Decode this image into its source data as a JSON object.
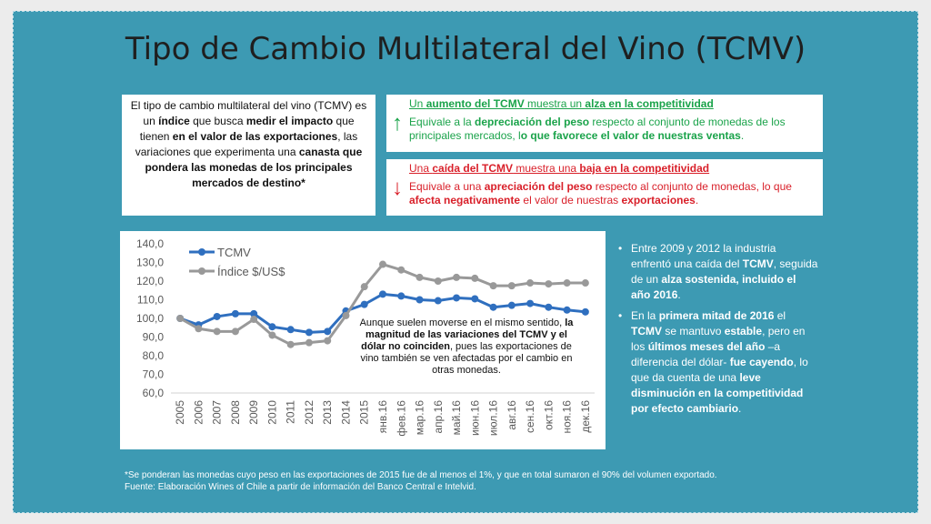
{
  "title": "Tipo de Cambio Multilateral del Vino (TCMV)",
  "intro": {
    "parts": [
      {
        "t": "El tipo de cambio multilateral del vino (TCMV) es un ",
        "b": false
      },
      {
        "t": "índice",
        "b": true
      },
      {
        "t": " que busca ",
        "b": false
      },
      {
        "t": "medir el impacto",
        "b": true
      },
      {
        "t": " que tienen ",
        "b": false
      },
      {
        "t": "en el valor de las exportaciones",
        "b": true
      },
      {
        "t": ", las variaciones que experimenta una ",
        "b": false
      },
      {
        "t": "canasta que pondera las monedas de los principales mercados de destino*",
        "b": true
      }
    ]
  },
  "up_box": {
    "head_parts": [
      {
        "t": "Un ",
        "b": false
      },
      {
        "t": "aumento del TCMV",
        "b": true
      },
      {
        "t": " muestra un ",
        "b": false
      },
      {
        "t": "alza en la competitividad",
        "b": true
      }
    ],
    "body_parts": [
      {
        "t": "Equivale a la ",
        "b": false
      },
      {
        "t": "depreciación del peso",
        "b": true
      },
      {
        "t": " respecto al conjunto de monedas de los principales mercados, l",
        "b": false
      },
      {
        "t": "o que favorece el valor de nuestras ventas",
        "b": true
      },
      {
        "t": ".",
        "b": false
      }
    ],
    "color": "#1aa34a",
    "arrow": "↑"
  },
  "down_box": {
    "head_parts": [
      {
        "t": "Una ",
        "b": false
      },
      {
        "t": "caída del TCMV",
        "b": true
      },
      {
        "t": " muestra una ",
        "b": false
      },
      {
        "t": "baja en la competitividad",
        "b": true
      }
    ],
    "body_parts": [
      {
        "t": "Equivale a una ",
        "b": false
      },
      {
        "t": "apreciación del peso",
        "b": true
      },
      {
        "t": " respecto al conjunto de monedas, lo que ",
        "b": false
      },
      {
        "t": "afecta negativamente",
        "b": true
      },
      {
        "t": " el valor de nuestras ",
        "b": false
      },
      {
        "t": "exportaciones",
        "b": true
      },
      {
        "t": ".",
        "b": false
      }
    ],
    "color": "#d9202a",
    "arrow": "↓"
  },
  "annotation": {
    "parts": [
      {
        "t": "Aunque suelen moverse en el mismo sentido, ",
        "b": false
      },
      {
        "t": "la magnitud de las variaciones del TCMV y el dólar no coinciden",
        "b": true
      },
      {
        "t": ", pues las exportaciones de vino también se ven afectadas por el cambio en otras monedas.",
        "b": false
      }
    ]
  },
  "bullets": [
    [
      {
        "t": "Entre 2009 y 2012 la industria enfrentó una caída del ",
        "b": false
      },
      {
        "t": "TCMV",
        "b": true
      },
      {
        "t": ", seguida de un ",
        "b": false
      },
      {
        "t": "alza sostenida, incluido el año 2016",
        "b": true
      },
      {
        "t": ".",
        "b": false
      }
    ],
    [
      {
        "t": "En la ",
        "b": false
      },
      {
        "t": "primera mitad de 2016",
        "b": true
      },
      {
        "t": " el ",
        "b": false
      },
      {
        "t": "TCMV",
        "b": true
      },
      {
        "t": " se mantuvo ",
        "b": false
      },
      {
        "t": "estable",
        "b": true
      },
      {
        "t": ", pero en los ",
        "b": false
      },
      {
        "t": "últimos meses del año",
        "b": true
      },
      {
        "t": " –a diferencia del dólar- ",
        "b": false
      },
      {
        "t": "fue cayendo",
        "b": true
      },
      {
        "t": ", lo que da cuenta de una ",
        "b": false
      },
      {
        "t": "leve disminución en la competitividad por efecto cambiario",
        "b": true
      },
      {
        "t": ".",
        "b": false
      }
    ]
  ],
  "footer": {
    "line1": "*Se ponderan las monedas cuyo peso en las exportaciones de 2015 fue de al menos el 1%, y que en total sumaron el 90% del volumen exportado.",
    "line2": "Fuente: Elaboración Wines of Chile a partir de información del Banco Central e Intelvid."
  },
  "chart_data": {
    "type": "line",
    "categories": [
      "2005",
      "2006",
      "2007",
      "2008",
      "2009",
      "2010",
      "2011",
      "2012",
      "2013",
      "2014",
      "2015",
      "янв.16",
      "фев.16",
      "мар.16",
      "апр.16",
      "май.16",
      "июн.16",
      "июл.16",
      "авг.16",
      "сен.16",
      "окт.16",
      "ноя.16",
      "дек.16"
    ],
    "y_ticks": [
      "140,0",
      "130,0",
      "120,0",
      "110,0",
      "100,0",
      "90,0",
      "80,0",
      "70,0",
      "60,0"
    ],
    "ylim": [
      60,
      140
    ],
    "legend_position": "top-left",
    "grid": false,
    "series": [
      {
        "name": "TCMV",
        "color": "#2f6fbf",
        "values": [
          100.0,
          96.5,
          101.0,
          102.5,
          102.5,
          95.5,
          94.0,
          92.5,
          93.0,
          104.0,
          107.5,
          113.0,
          112.0,
          110.0,
          109.5,
          111.0,
          110.5,
          106.0,
          107.0,
          108.0,
          106.0,
          104.5,
          103.5
        ]
      },
      {
        "name": "Índice $/US$",
        "color": "#999999",
        "values": [
          100.0,
          94.5,
          93.0,
          93.0,
          99.5,
          91.0,
          86.0,
          87.0,
          88.0,
          101.5,
          117.0,
          129.0,
          126.0,
          122.0,
          120.0,
          122.0,
          121.5,
          117.5,
          117.5,
          119.0,
          118.5,
          119.0,
          119.0
        ]
      }
    ]
  }
}
